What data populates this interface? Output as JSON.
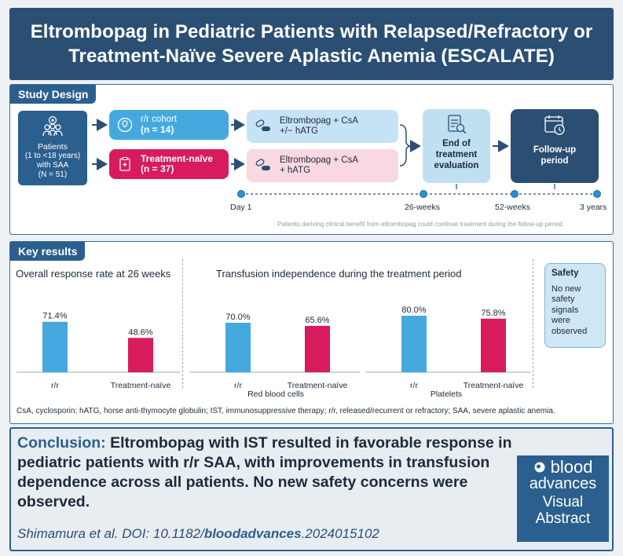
{
  "title": "Eltrombopag in Pediatric Patients with Relapsed/Refractory or Treatment-Naïve Severe Aplastic Anemia (ESCALATE)",
  "design": {
    "tag": "Study Design",
    "patients": {
      "line1": "Patients",
      "line2": "(1 to <18 years)",
      "line3": "with SAA",
      "line4": "(N = 51)"
    },
    "rr": {
      "name": "r/r cohort",
      "n": "(n = 14)",
      "arm1": "Eltrombopag + CsA",
      "arm2": "+/− hATG"
    },
    "tn": {
      "name": "Treatment-naïve",
      "n": "(n = 37)",
      "arm1": "Eltrombopag + CsA",
      "arm2": "+ hATG"
    },
    "eot": {
      "l1": "End of",
      "l2": "treatment",
      "l3": "evaluation"
    },
    "fup": {
      "l1": "Follow-up",
      "l2": "period"
    },
    "timeline": {
      "t1": "Day 1",
      "t2": "26-weeks",
      "t3": "52-weeks",
      "t4": "3 years"
    },
    "note": "Patients deriving clinical benefit from eltrombopag could continue treatment during the follow-up period"
  },
  "results": {
    "tag": "Key results",
    "orr_title": "Overall response rate at 26 weeks",
    "ti_title": "Transfusion independence during the treatment period",
    "safety_title": "Safety",
    "safety_text": "No new safety signals were observed",
    "abbrev": "CsA, cyclosporin; hATG, horse anti-thymocyte globulin; IST, immunosuppressive therapy; r/r, released/recurrent or refractory; SAA, severe aplastic anemia."
  },
  "chart_data": [
    {
      "type": "bar",
      "title": "Overall response rate at 26 weeks",
      "categories": [
        "r/r",
        "Treatment-naïve"
      ],
      "values": [
        71.4,
        48.6
      ],
      "labels": [
        "71.4%",
        "48.6%"
      ],
      "colors": [
        "#45a9e0",
        "#d81b5c"
      ],
      "ylim": [
        0,
        100
      ]
    },
    {
      "type": "bar",
      "title": "Red blood cells",
      "categories": [
        "r/r",
        "Treatment-naïve"
      ],
      "values": [
        70.0,
        65.6
      ],
      "labels": [
        "70.0%",
        "65.6%"
      ],
      "colors": [
        "#45a9e0",
        "#d81b5c"
      ],
      "ylim": [
        0,
        100
      ]
    },
    {
      "type": "bar",
      "title": "Platelets",
      "categories": [
        "r/r",
        "Treatment-naïve"
      ],
      "values": [
        80.0,
        75.8
      ],
      "labels": [
        "80.0%",
        "75.8%"
      ],
      "colors": [
        "#45a9e0",
        "#d81b5c"
      ],
      "ylim": [
        0,
        100
      ]
    }
  ],
  "conclusion": {
    "lead": "Conclusion:",
    "text": "Eltrombopag with IST resulted in favorable response in pediatric patients with r/r SAA, with improvements in transfusion dependence across all patients. No new safety concerns were observed.",
    "cite_a": "Shimamura et al. DOI: 10.1182/",
    "cite_b": "bloodadvances",
    "cite_c": ".2024015102"
  },
  "logo": {
    "l1": "blood",
    "l2": "advances",
    "l3": "Visual",
    "l4": "Abstract"
  }
}
